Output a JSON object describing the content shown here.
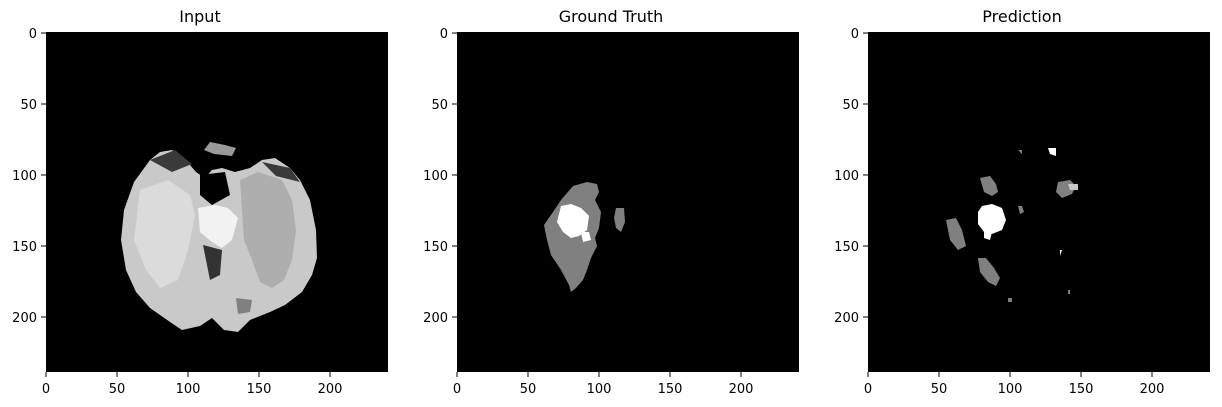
{
  "panels": [
    {
      "title": "Input",
      "image": "mri-axial-slice",
      "xticks": [
        0,
        50,
        100,
        150,
        200
      ],
      "yticks": [
        0,
        50,
        100,
        150,
        200
      ]
    },
    {
      "title": "Ground Truth",
      "image": "segmentation-mask",
      "xticks": [
        0,
        50,
        100,
        150,
        200
      ],
      "yticks": [
        0,
        50,
        100,
        150,
        200
      ]
    },
    {
      "title": "Prediction",
      "image": "segmentation-mask",
      "xticks": [
        0,
        50,
        100,
        150,
        200
      ],
      "yticks": [
        0,
        50,
        100,
        150,
        200
      ]
    }
  ],
  "image_extent": [
    0,
    240
  ],
  "colors": {
    "background": "#000000",
    "mask_edema": "#808080",
    "mask_core": "#ffffff"
  }
}
